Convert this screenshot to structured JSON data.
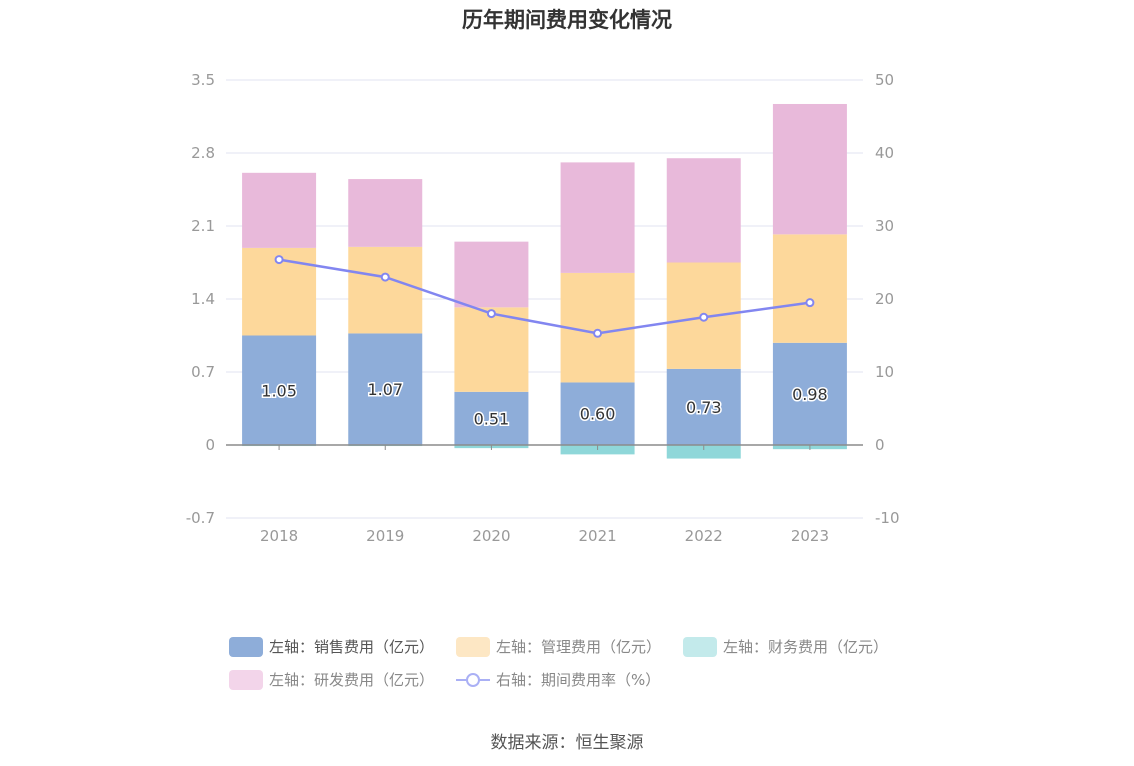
{
  "chart_data": {
    "type": "bar",
    "title": "历年期间费用变化情况",
    "categories": [
      "2018",
      "2019",
      "2020",
      "2021",
      "2022",
      "2023"
    ],
    "stacked": true,
    "left_axis": {
      "min": -0.7,
      "max": 3.5,
      "ticks": [
        "-0.7",
        "0",
        "0.7",
        "1.4",
        "2.1",
        "2.8",
        "3.5"
      ]
    },
    "right_axis": {
      "min": -10,
      "max": 50,
      "ticks": [
        "-10",
        "0",
        "10",
        "20",
        "30",
        "40",
        "50"
      ]
    },
    "grid": true,
    "legend_position": "bottom",
    "series": [
      {
        "name": "左轴：销售费用（亿元）",
        "axis": "left",
        "type": "bar",
        "color": "#8eadd9",
        "values": [
          1.05,
          1.07,
          0.51,
          0.6,
          0.73,
          0.98
        ],
        "labels": [
          "1.05",
          "1.07",
          "0.51",
          "0.60",
          "0.73",
          "0.98"
        ]
      },
      {
        "name": "左轴：管理费用（亿元）",
        "axis": "left",
        "type": "bar",
        "color": "#fdd89b",
        "values": [
          0.84,
          0.83,
          0.81,
          1.05,
          1.02,
          1.04
        ]
      },
      {
        "name": "左轴：财务费用（亿元）",
        "axis": "left",
        "type": "bar",
        "color": "#8fd7d9",
        "values": [
          -0.01,
          -0.01,
          -0.03,
          -0.09,
          -0.13,
          -0.04
        ]
      },
      {
        "name": "左轴：研发费用（亿元）",
        "axis": "left",
        "type": "bar",
        "color": "#e8b9da",
        "values": [
          0.72,
          0.65,
          0.63,
          1.06,
          1.0,
          1.25
        ]
      },
      {
        "name": "右轴：期间费用率（%）",
        "axis": "right",
        "type": "line",
        "color": "#8286f0",
        "values": [
          25.4,
          23.0,
          18.0,
          15.3,
          17.5,
          19.5
        ]
      }
    ]
  },
  "legend": [
    {
      "label": "左轴：销售费用（亿元）",
      "color": "#8eadd9",
      "kind": "bar",
      "dim": false
    },
    {
      "label": "左轴：管理费用（亿元）",
      "color": "#fde7c4",
      "kind": "bar",
      "dim": true
    },
    {
      "label": "左轴：财务费用（亿元）",
      "color": "#c3eaeb",
      "kind": "bar",
      "dim": true
    },
    {
      "label": "左轴：研发费用（亿元）",
      "color": "#f3d5ea",
      "kind": "bar",
      "dim": true
    },
    {
      "label": "右轴：期间费用率（%）",
      "color": "#aab0f5",
      "kind": "line",
      "dim": true
    }
  ],
  "source": "数据来源：恒生聚源"
}
